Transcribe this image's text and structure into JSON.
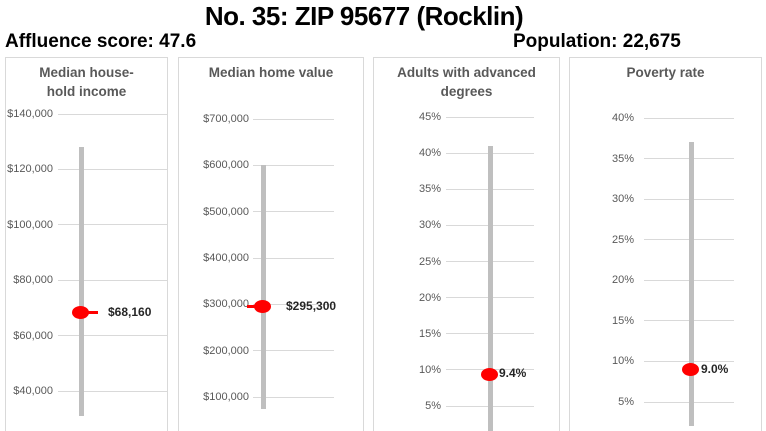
{
  "header": {
    "title": "No. 35: ZIP 95677 (Rocklin)",
    "affluence": "Affluence score: 47.6",
    "population": "Population: 22,675"
  },
  "colors": {
    "marker_red": "#ff0000",
    "range_bar_gray": "#bfbfbf",
    "gridline_gray": "#d9d9d9",
    "axis_text_gray": "#595959",
    "panel_border_gray": "#d9d9d9",
    "value_label_dark": "#262626",
    "header_black": "#000000"
  },
  "chart_data": [
    {
      "type": "scatter",
      "title": "Median house-\nhold income",
      "tick_labels": [
        "$140,000",
        "$120,000",
        "$100,000",
        "$80,000",
        "$60,000",
        "$40,000"
      ],
      "tick_values": [
        140000,
        120000,
        100000,
        80000,
        60000,
        40000
      ],
      "axis_range": [
        40000,
        140000
      ],
      "range_low": 31000,
      "range_high": 128000,
      "value": 68160,
      "value_label": "$68,160"
    },
    {
      "type": "scatter",
      "title": "Median home value",
      "tick_labels": [
        "$700,000",
        "$600,000",
        "$500,000",
        "$400,000",
        "$300,000",
        "$200,000",
        "$100,000"
      ],
      "tick_values": [
        700000,
        600000,
        500000,
        400000,
        300000,
        200000,
        100000
      ],
      "axis_range": [
        100000,
        700000
      ],
      "range_low": 74000,
      "range_high": 600000,
      "value": 295300,
      "value_label": "$295,300"
    },
    {
      "type": "scatter",
      "title": "Adults with advanced\ndegrees",
      "tick_labels": [
        "45%",
        "40%",
        "35%",
        "30%",
        "25%",
        "20%",
        "15%",
        "10%",
        "5%"
      ],
      "tick_values": [
        45,
        40,
        35,
        30,
        25,
        20,
        15,
        10,
        5
      ],
      "axis_range": [
        5,
        45
      ],
      "range_low": 1,
      "range_high": 41,
      "value": 9.4,
      "value_label": "9.4%"
    },
    {
      "type": "scatter",
      "title": "Poverty rate",
      "tick_labels": [
        "40%",
        "35%",
        "30%",
        "25%",
        "20%",
        "15%",
        "10%",
        "5%"
      ],
      "tick_values": [
        40,
        35,
        30,
        25,
        20,
        15,
        10,
        5
      ],
      "axis_range": [
        5,
        40
      ],
      "range_low": 2,
      "range_high": 37,
      "value": 9.0,
      "value_label": "9.0%"
    }
  ]
}
